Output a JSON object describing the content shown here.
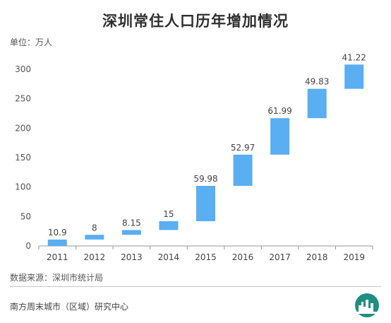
{
  "chart_data": {
    "type": "bar",
    "subtype": "waterfall",
    "title": "深圳常住人口历年增加情况",
    "unit_label": "单位：万人",
    "categories": [
      "2011",
      "2012",
      "2013",
      "2014",
      "2015",
      "2016",
      "2017",
      "2018",
      "2019"
    ],
    "increments": [
      "10.9",
      "8",
      "8.15",
      "15",
      "59.98",
      "52.97",
      "61.99",
      "49.83",
      "41.22"
    ],
    "yticks": [
      "0",
      "50",
      "100",
      "150",
      "200",
      "250",
      "300"
    ],
    "ylim": [
      0,
      325
    ],
    "grid": false,
    "bar_color": "#5aaef2"
  },
  "source": "数据来源：深圳市统计局",
  "footer": "南方周末城市（区域）研究中心"
}
